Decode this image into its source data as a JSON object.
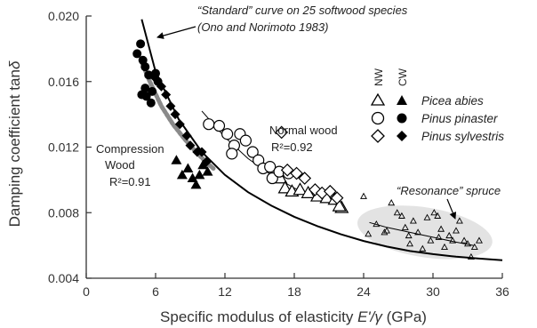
{
  "chart_data": {
    "type": "scatter",
    "xlabel_pre": "Specific modulus of elasticity ",
    "xlabel_var": "E'/γ",
    "xlabel_unit": " (GPa)",
    "ylabel_pre": "Damping coefficient tan",
    "ylabel_var": "δ",
    "xlim": [
      0,
      36
    ],
    "ylim": [
      0.004,
      0.02
    ],
    "x_ticks": [
      0,
      6,
      12,
      18,
      24,
      30,
      36
    ],
    "y_ticks": [
      0.004,
      0.008,
      0.012,
      0.016,
      0.02
    ],
    "x_tick_labels": [
      "0",
      "6",
      "12",
      "18",
      "24",
      "30",
      "36"
    ],
    "y_tick_labels": [
      "0.004",
      "0.008",
      "0.012",
      "0.016",
      "0.020"
    ],
    "legend": {
      "placement": "top-right",
      "col_nw": "NW",
      "col_cw": "CW",
      "entries": [
        {
          "marker": "triangle",
          "label": "Picea abies"
        },
        {
          "marker": "circle",
          "label": "Pinus pinaster"
        },
        {
          "marker": "diamond",
          "label": "Pinus sylvestris"
        }
      ]
    },
    "annotations": {
      "standard_line1": "“Standard” curve on 25 softwood species",
      "standard_line2": "(Ono and Norimoto 1983)",
      "normal_title": "Normal wood",
      "normal_r2": "R²=0.92",
      "compression_line1": "Compression",
      "compression_line2": "Wood",
      "compression_r2": "R²=0.91",
      "resonance": "“Resonance” spruce"
    },
    "standard_curve": [
      [
        4.8,
        0.0198
      ],
      [
        6,
        0.0166
      ],
      [
        8,
        0.0137
      ],
      [
        10,
        0.0117
      ],
      [
        12,
        0.0103
      ],
      [
        14,
        0.00925
      ],
      [
        16,
        0.00843
      ],
      [
        18,
        0.00775
      ],
      [
        20,
        0.00718
      ],
      [
        22,
        0.00669
      ],
      [
        24,
        0.00627
      ],
      [
        26,
        0.00593
      ],
      [
        28,
        0.00566
      ],
      [
        30,
        0.00547
      ],
      [
        32,
        0.00531
      ],
      [
        34,
        0.0052
      ],
      [
        36,
        0.0051
      ]
    ],
    "compression_fit": [
      [
        4.8,
        0.0172
      ],
      [
        5.5,
        0.016
      ],
      [
        6.5,
        0.0145
      ],
      [
        7.5,
        0.0134
      ],
      [
        8.5,
        0.0125
      ],
      [
        9.5,
        0.0117
      ],
      [
        10.5,
        0.011
      ],
      [
        11,
        0.0107
      ]
    ],
    "normal_fit": [
      [
        10,
        0.0142
      ],
      [
        12,
        0.0126
      ],
      [
        14,
        0.0113
      ],
      [
        16,
        0.0103
      ],
      [
        18,
        0.0095
      ],
      [
        20,
        0.0089
      ],
      [
        22,
        0.0084
      ]
    ],
    "resonance_fit": [
      [
        24.5,
        0.0074
      ],
      [
        26,
        0.0071
      ],
      [
        28,
        0.0068
      ],
      [
        30,
        0.0065
      ],
      [
        32,
        0.0062
      ],
      [
        33.5,
        0.006
      ]
    ],
    "series": [
      {
        "name": "Picea abies",
        "wood": "NW",
        "marker": "triangle",
        "filled": false,
        "points": [
          [
            16.8,
            0.0101
          ],
          [
            17.2,
            0.0095
          ],
          [
            17.8,
            0.0093
          ],
          [
            18.5,
            0.0094
          ],
          [
            19.2,
            0.0092
          ],
          [
            20,
            0.009
          ],
          [
            20.8,
            0.0089
          ],
          [
            21.5,
            0.0088
          ],
          [
            22.1,
            0.0083
          ],
          [
            21.9,
            0.0084
          ]
        ]
      },
      {
        "name": "Picea abies",
        "wood": "CW",
        "marker": "triangle",
        "filled": true,
        "points": [
          [
            7.8,
            0.0112
          ],
          [
            8.3,
            0.0103
          ],
          [
            8.8,
            0.0107
          ],
          [
            9.2,
            0.0101
          ],
          [
            9.8,
            0.0103
          ],
          [
            10.1,
            0.0109
          ],
          [
            10.5,
            0.0105
          ],
          [
            9.5,
            0.0097
          ]
        ]
      },
      {
        "name": "Pinus pinaster",
        "wood": "NW",
        "marker": "circle",
        "filled": false,
        "points": [
          [
            10.6,
            0.0134
          ],
          [
            11.5,
            0.0133
          ],
          [
            12.2,
            0.0128
          ],
          [
            12.8,
            0.0121
          ],
          [
            13.3,
            0.0128
          ],
          [
            13.8,
            0.0124
          ],
          [
            14.4,
            0.0117
          ],
          [
            14.9,
            0.0112
          ],
          [
            15.3,
            0.0107
          ],
          [
            15.9,
            0.0108
          ],
          [
            16.1,
            0.0101
          ],
          [
            16.7,
            0.0105
          ],
          [
            17.5,
            0.0104
          ],
          [
            12.6,
            0.0116
          ]
        ]
      },
      {
        "name": "Pinus pinaster",
        "wood": "CW",
        "marker": "circle",
        "filled": true,
        "points": [
          [
            4.4,
            0.0177
          ],
          [
            4.7,
            0.0183
          ],
          [
            4.9,
            0.0173
          ],
          [
            5.1,
            0.0169
          ],
          [
            5.4,
            0.0164
          ],
          [
            5.1,
            0.0156
          ],
          [
            4.8,
            0.0152
          ],
          [
            5.2,
            0.0151
          ],
          [
            5.7,
            0.0154
          ],
          [
            6.0,
            0.0165
          ],
          [
            5.6,
            0.0147
          ],
          [
            6.2,
            0.016
          ]
        ]
      },
      {
        "name": "Pinus sylvestris",
        "wood": "NW",
        "marker": "diamond",
        "filled": false,
        "points": [
          [
            16.9,
            0.0129
          ],
          [
            17.4,
            0.0106
          ],
          [
            18.2,
            0.0104
          ],
          [
            18.9,
            0.0101
          ],
          [
            19.8,
            0.0094
          ],
          [
            20.4,
            0.0092
          ],
          [
            21.1,
            0.0093
          ],
          [
            21.7,
            0.0089
          ]
        ]
      },
      {
        "name": "Pinus sylvestris",
        "wood": "CW",
        "marker": "diamond",
        "filled": true,
        "points": [
          [
            6.0,
            0.0162
          ],
          [
            6.5,
            0.0157
          ],
          [
            6.9,
            0.0152
          ],
          [
            7.3,
            0.0145
          ],
          [
            7.7,
            0.014
          ],
          [
            8.1,
            0.0134
          ],
          [
            8.7,
            0.0127
          ],
          [
            9.0,
            0.0121
          ],
          [
            9.6,
            0.0117
          ],
          [
            10.0,
            0.0117
          ],
          [
            10.4,
            0.0111
          ]
        ]
      },
      {
        "name": "Resonance spruce",
        "wood": "NW",
        "marker": "small-triangle",
        "filled": false,
        "points": [
          [
            24.0,
            0.009
          ],
          [
            24.4,
            0.0067
          ],
          [
            25.1,
            0.0073
          ],
          [
            25.8,
            0.0068
          ],
          [
            26.4,
            0.0086
          ],
          [
            26.9,
            0.008
          ],
          [
            27.3,
            0.0078
          ],
          [
            27.6,
            0.0071
          ],
          [
            27.9,
            0.0066
          ],
          [
            28.3,
            0.0075
          ],
          [
            28.7,
            0.0068
          ],
          [
            29.1,
            0.0058
          ],
          [
            29.5,
            0.0077
          ],
          [
            29.8,
            0.0063
          ],
          [
            30.1,
            0.008
          ],
          [
            30.4,
            0.0078
          ],
          [
            30.7,
            0.007
          ],
          [
            31.0,
            0.0059
          ],
          [
            31.4,
            0.0066
          ],
          [
            31.7,
            0.0063
          ],
          [
            32.0,
            0.0069
          ],
          [
            32.3,
            0.0075
          ],
          [
            32.7,
            0.0063
          ],
          [
            33.0,
            0.0061
          ],
          [
            33.3,
            0.0053
          ],
          [
            33.6,
            0.0059
          ],
          [
            34.0,
            0.0063
          ],
          [
            26.0,
            0.0069
          ],
          [
            28.0,
            0.0061
          ],
          [
            30.5,
            0.0065
          ]
        ]
      }
    ],
    "colors": {
      "axis": "#333333",
      "curve": "#000000",
      "compression_fit": "#8a8a8a",
      "resonance_band": "#d9d9d9",
      "marker": "#000000"
    }
  }
}
